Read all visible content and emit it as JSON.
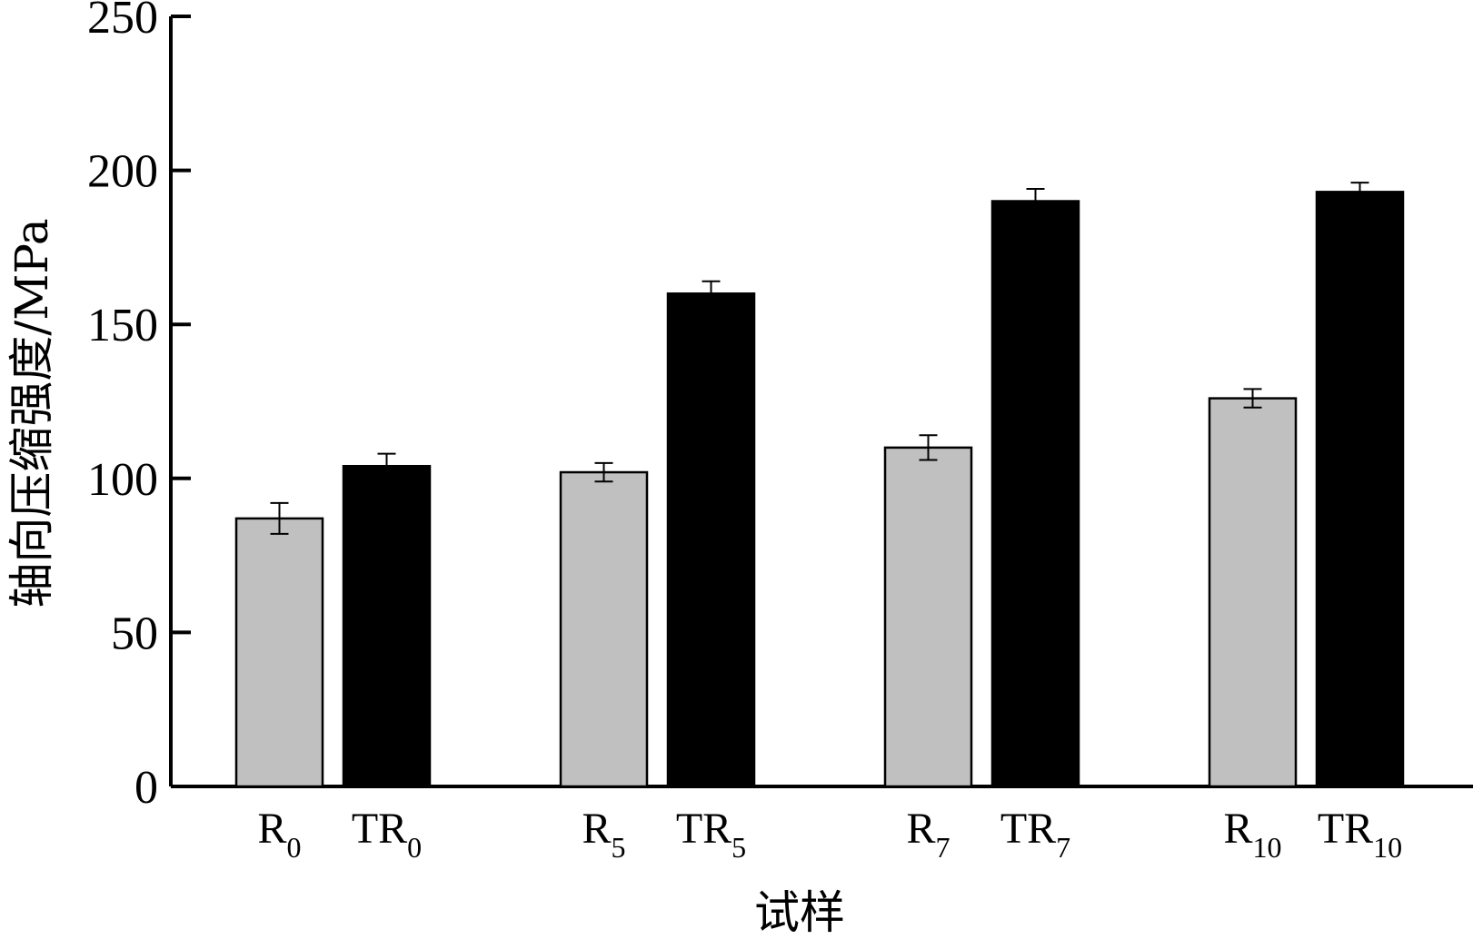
{
  "chart_data": {
    "type": "bar",
    "xlabel": "试样",
    "ylabel": "轴向压缩强度/MPa",
    "ylim": [
      0,
      250
    ],
    "yticks": [
      0,
      50,
      100,
      150,
      200,
      250
    ],
    "grid": false,
    "legend": "none",
    "bars": [
      {
        "label": "R",
        "sub": "0",
        "value": 87,
        "error": 5,
        "color": "#c0c0c0"
      },
      {
        "label": "TR",
        "sub": "0",
        "value": 104,
        "error": 4,
        "color": "#000000"
      },
      {
        "label": "R",
        "sub": "5",
        "value": 102,
        "error": 3,
        "color": "#c0c0c0"
      },
      {
        "label": "TR",
        "sub": "5",
        "value": 160,
        "error": 4,
        "color": "#000000"
      },
      {
        "label": "R",
        "sub": "7",
        "value": 110,
        "error": 4,
        "color": "#c0c0c0"
      },
      {
        "label": "TR",
        "sub": "7",
        "value": 190,
        "error": 4,
        "color": "#000000"
      },
      {
        "label": "R",
        "sub": "10",
        "value": 126,
        "error": 3,
        "color": "#c0c0c0"
      },
      {
        "label": "TR",
        "sub": "10",
        "value": 193,
        "error": 3,
        "color": "#000000"
      }
    ]
  }
}
